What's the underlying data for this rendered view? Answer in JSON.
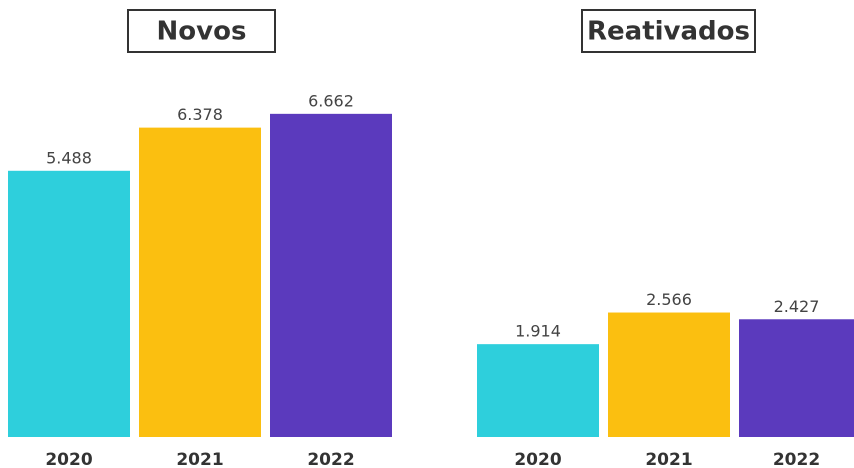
{
  "chart_data": [
    {
      "type": "bar",
      "title": "Novos",
      "categories": [
        "2020",
        "2021",
        "2022"
      ],
      "values": [
        5488,
        6378,
        6662
      ],
      "value_labels": [
        "5.488",
        "6.378",
        "6.662"
      ],
      "colors": [
        "#2ecfdc",
        "#fbbf10",
        "#5b3abd"
      ],
      "ylim": [
        0,
        6700
      ]
    },
    {
      "type": "bar",
      "title": "Reativados",
      "categories": [
        "2020",
        "2021",
        "2022"
      ],
      "values": [
        1914,
        2566,
        2427
      ],
      "value_labels": [
        "1.914",
        "2.566",
        "2.427"
      ],
      "colors": [
        "#2ecfdc",
        "#fbbf10",
        "#5b3abd"
      ],
      "ylim": [
        0,
        6700
      ]
    }
  ]
}
